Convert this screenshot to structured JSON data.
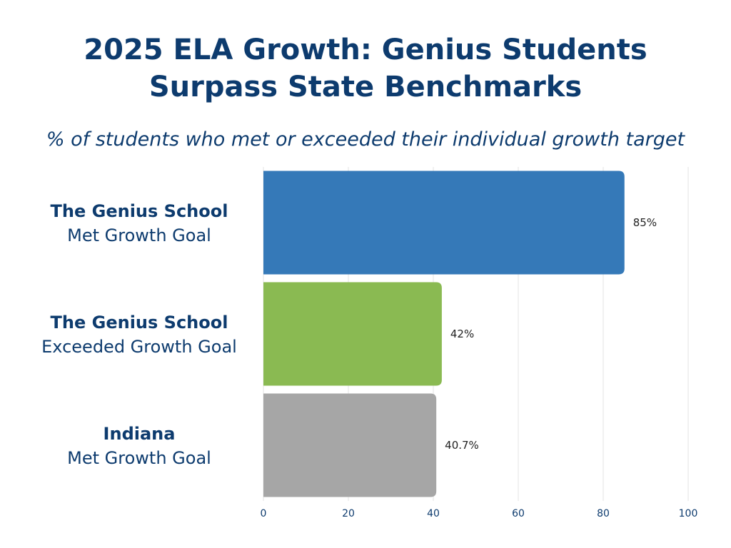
{
  "page": {
    "title_line1": "2025 ELA Growth: Genius Students",
    "title_line2": "Surpass State Benchmarks",
    "subtitle": "% of students who met or exceeded their individual growth target"
  },
  "chart_data": {
    "type": "bar",
    "orientation": "horizontal",
    "title": "2025 ELA Growth: Genius Students Surpass State Benchmarks",
    "subtitle": "% of students who met or exceeded their individual growth target",
    "categories": [
      {
        "line1": "The Genius School",
        "line2": "Met Growth Goal"
      },
      {
        "line1": "The Genius School",
        "line2": "Exceeded Growth Goal"
      },
      {
        "line1": "Indiana",
        "line2": "Met Growth Goal"
      }
    ],
    "values": [
      85,
      42,
      40.7
    ],
    "value_labels": [
      "85%",
      "42%",
      "40.7%"
    ],
    "colors": [
      "#3579b8",
      "#8aba52",
      "#a6a6a6"
    ],
    "xlim": [
      0,
      100
    ],
    "xticks": [
      0,
      20,
      40,
      60,
      80,
      100
    ],
    "grid": true,
    "legend": "none"
  }
}
